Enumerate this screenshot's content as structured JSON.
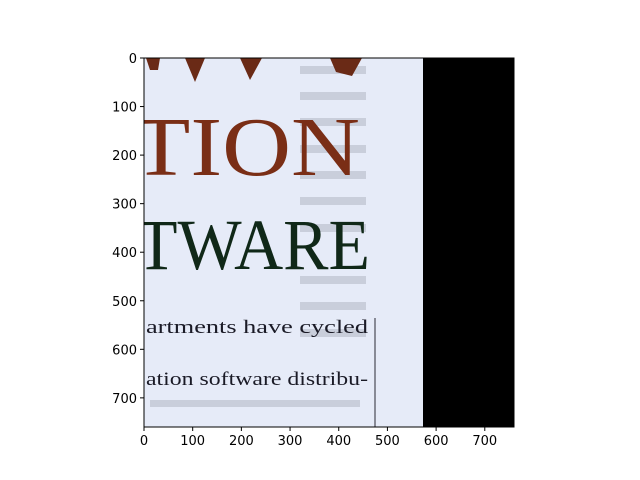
{
  "figure": {
    "x_ticks": [
      "0",
      "100",
      "200",
      "300",
      "400",
      "500",
      "600",
      "700"
    ],
    "y_ticks": [
      "0",
      "100",
      "200",
      "300",
      "400",
      "500",
      "600",
      "700"
    ],
    "x_tick_values": [
      0,
      100,
      200,
      300,
      400,
      500,
      600,
      700
    ],
    "y_tick_values": [
      0,
      100,
      200,
      300,
      400,
      500,
      600,
      700
    ],
    "x_range": [
      0,
      760
    ],
    "y_range": [
      760,
      0
    ]
  },
  "image": {
    "headline_line_1": "TION",
    "headline_line_2": "TWARE",
    "body_line_1": "artments  have  cycled",
    "body_line_2": "ation software distribu-",
    "colors": {
      "page": "#e6ebf8",
      "headline_1": "#7a2e16",
      "headline_2": "#102818",
      "body_text": "#1a1a26",
      "black_band": "#000000"
    }
  }
}
